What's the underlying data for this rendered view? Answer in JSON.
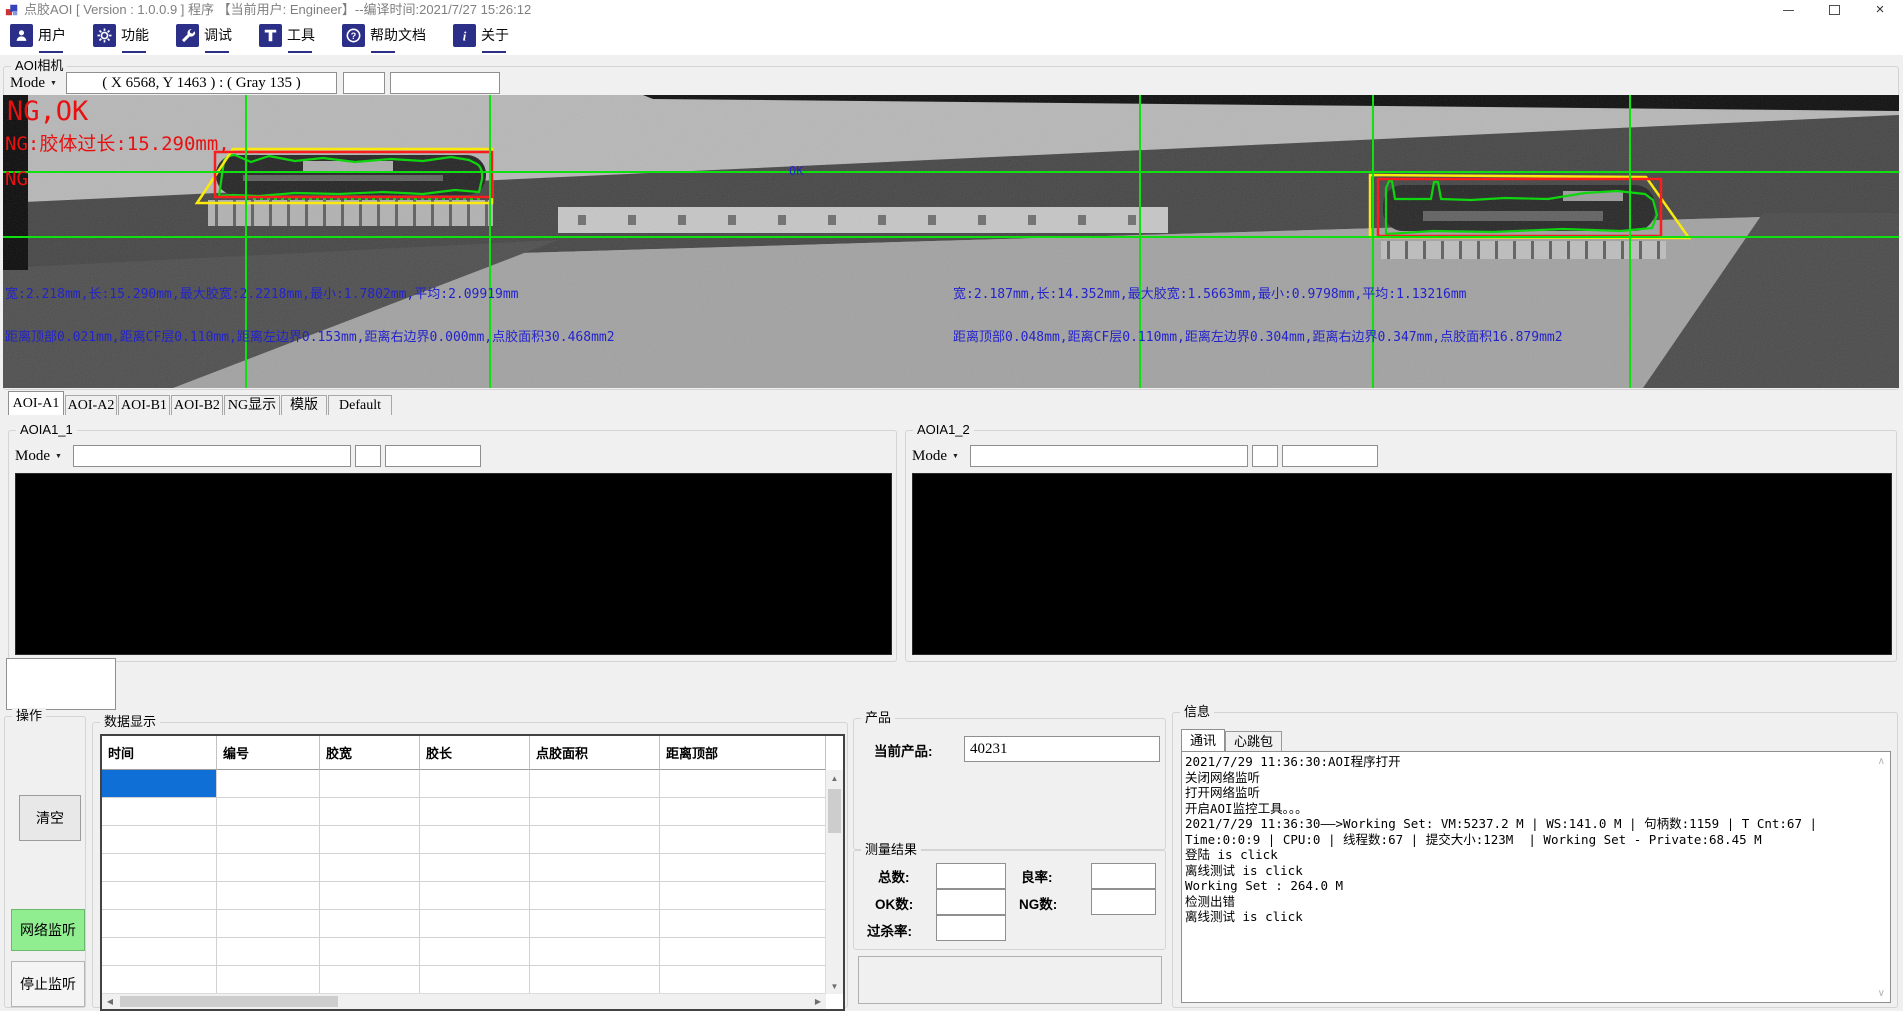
{
  "window": {
    "title": "点胶AOI [ Version : 1.0.0.9 ]  程序 【当前用户:  Engineer】--编译时间:2021/7/27 15:26:12",
    "close_glyph": "×"
  },
  "toolbar": {
    "items": [
      {
        "id": "user",
        "label": "用户",
        "icon": "user-icon"
      },
      {
        "id": "function",
        "label": "功能",
        "icon": "gear-icon"
      },
      {
        "id": "debug",
        "label": "调试",
        "icon": "wrench-icon"
      },
      {
        "id": "tools",
        "label": "工具",
        "icon": "tools-icon"
      },
      {
        "id": "help",
        "label": "帮助文档",
        "icon": "help-icon"
      },
      {
        "id": "about",
        "label": "关于",
        "icon": "about-icon"
      }
    ]
  },
  "camera": {
    "group_label": "AOI相机",
    "mode_label": "Mode",
    "coords_value": "( X 6568, Y 1463 ) : ( Gray 135 )"
  },
  "overlay": {
    "result_text": "NG,OK",
    "ng_message": "NG:胶体过长:15.290mm,",
    "ng_label": "NG",
    "ok_label": "OK",
    "left_stats_line1": "宽:2.218mm,长:15.290mm,最大胶宽:2.2218mm,最小:1.7802mm,平均:2.09919mm",
    "left_stats_line2": "距离顶部0.021mm,距离CF层0.110mm,距离左边界0.153mm,距离右边界0.000mm,点胶面积30.468mm2",
    "right_stats_line1": "宽:2.187mm,长:14.352mm,最大胶宽:1.5663mm,最小:0.9798mm,平均:1.13216mm",
    "right_stats_line2": "距离顶部0.048mm,距离CF层0.110mm,距离左边界0.304mm,距离右边界0.347mm,点胶面积16.879mm2"
  },
  "view_tabs": {
    "selected": "AOI-A1",
    "items": [
      "AOI-A1",
      "AOI-A2",
      "AOI-B1",
      "AOI-B2",
      "NG显示",
      "模版",
      "Default"
    ]
  },
  "subviews": {
    "left": {
      "group_label": "AOIA1_1",
      "mode_label": "Mode"
    },
    "right": {
      "group_label": "AOIA1_2",
      "mode_label": "Mode"
    }
  },
  "operations": {
    "group_label": "操作",
    "buttons": [
      {
        "id": "clear",
        "label": "清空",
        "style": "normal"
      },
      {
        "id": "network-listen",
        "label": "网络监听",
        "style": "green"
      },
      {
        "id": "stop-listen",
        "label": "停止监听",
        "style": "light"
      }
    ]
  },
  "data_table": {
    "group_label": "数据显示",
    "columns": [
      "时间",
      "编号",
      "胶宽",
      "胶长",
      "点胶面积",
      "距离顶部"
    ],
    "empty_row_count": 8,
    "selected_cell": {
      "row": 0,
      "col": 0
    }
  },
  "product": {
    "group_label": "产品",
    "current_label": "当前产品:",
    "current_value": "40231"
  },
  "results": {
    "group_label": "测量结果",
    "fields": [
      {
        "id": "total",
        "label": "总数:",
        "value": ""
      },
      {
        "id": "yield",
        "label": "良率:",
        "value": ""
      },
      {
        "id": "ok-count",
        "label": "OK数:",
        "value": ""
      },
      {
        "id": "ng-count",
        "label": "NG数:",
        "value": ""
      },
      {
        "id": "overkill",
        "label": "过杀率:",
        "value": ""
      }
    ]
  },
  "info": {
    "group_label": "信息",
    "tabs": [
      "通讯",
      "心跳包"
    ],
    "selected_tab": "通讯",
    "log_lines": [
      "2021/7/29 11:36:30:AOI程序打开",
      "关闭网络监听",
      "打开网络监听",
      "开启AOI监控工具。。。",
      "2021/7/29 11:36:30——>Working Set: VM:5237.2 M | WS:141.0 M | 句柄数:1159 | T Cnt:67 |",
      "Time:0:0:9 | CPU:0 | 线程数:67 | 提交大小:123M  | Working Set - Private:68.45 M",
      "登陆 is click",
      "离线测试 is click",
      "Working Set : 264.0 M",
      "检测出错",
      "离线测试 is click"
    ]
  },
  "colors": {
    "toolbar_icon_bg": "#2b2f88",
    "crosshair_green": "#00e400",
    "box_red": "#ff1010",
    "box_yellow": "#ffee00",
    "annotation_blue": "#2323cc",
    "ng_red": "#e81111",
    "selection_blue": "#0f6fd7",
    "listen_button_green": "#90ee90"
  }
}
